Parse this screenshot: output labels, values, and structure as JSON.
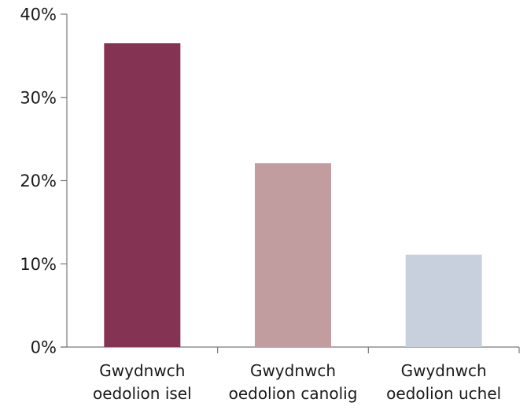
{
  "chart_data": {
    "type": "bar",
    "categories": [
      [
        "Gwydnwch",
        "oedolion isel"
      ],
      [
        "Gwydnwch",
        "oedolion canolig"
      ],
      [
        "Gwydnwch",
        "oedolion uchel"
      ]
    ],
    "values": [
      36.5,
      22.1,
      11.1
    ],
    "colors": [
      "#843352",
      "#c19da0",
      "#c8d0de"
    ],
    "ylim": [
      0,
      40
    ],
    "yticks": [
      0,
      10,
      20,
      30,
      40
    ],
    "ytick_labels": [
      "0%",
      "10%",
      "20%",
      "30%",
      "40%"
    ],
    "title": "",
    "xlabel": "",
    "ylabel": "",
    "grid": false
  }
}
